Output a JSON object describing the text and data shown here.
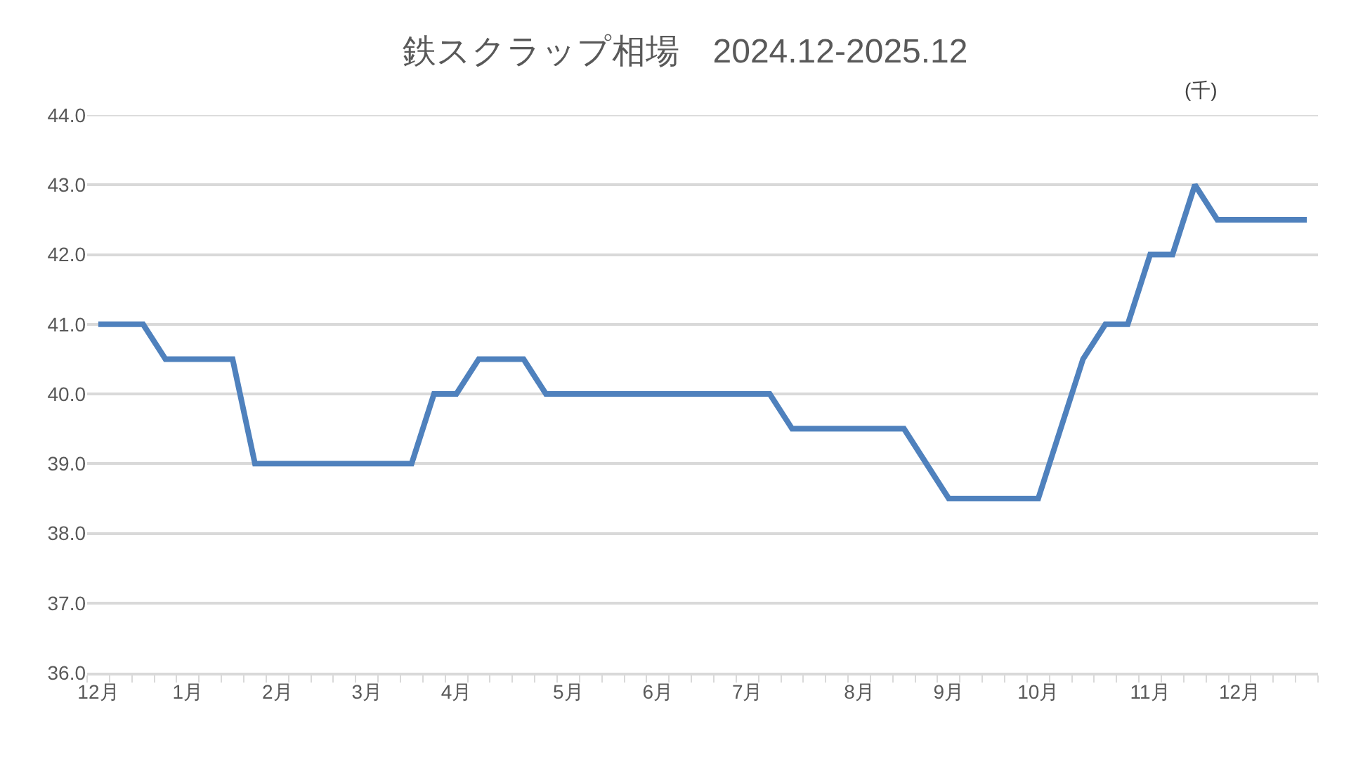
{
  "chart_data": {
    "type": "line",
    "title": "鉄スクラップ相場　2024.12-2025.12",
    "annotations": [
      "(千)"
    ],
    "categories": [
      "12月",
      null,
      null,
      null,
      "1月",
      null,
      null,
      null,
      "2月",
      null,
      null,
      null,
      "3月",
      null,
      null,
      null,
      "4月",
      null,
      null,
      null,
      null,
      "5月",
      null,
      null,
      null,
      "6月",
      null,
      null,
      null,
      "7月",
      null,
      null,
      null,
      null,
      "8月",
      null,
      null,
      null,
      "9月",
      null,
      null,
      null,
      "10月",
      null,
      null,
      null,
      null,
      "11月",
      null,
      null,
      null,
      "12月",
      null,
      null,
      null
    ],
    "series": [
      {
        "color": "#4f81bd",
        "values": [
          41.0,
          41.0,
          41.0,
          40.5,
          40.5,
          40.5,
          40.5,
          39.0,
          39.0,
          39.0,
          39.0,
          39.0,
          39.0,
          39.0,
          39.0,
          40.0,
          40.0,
          40.5,
          40.5,
          40.5,
          40.0,
          40.0,
          40.0,
          40.0,
          40.0,
          40.0,
          40.0,
          40.0,
          40.0,
          40.0,
          40.0,
          39.5,
          39.5,
          39.5,
          39.5,
          39.5,
          39.5,
          39.0,
          38.5,
          38.5,
          38.5,
          38.5,
          38.5,
          39.5,
          40.5,
          41.0,
          41.0,
          42.0,
          42.0,
          43.0,
          42.5,
          42.5,
          42.5,
          42.5,
          42.5
        ]
      }
    ],
    "ylim": [
      36,
      44
    ],
    "yticks": [
      {
        "value": 36,
        "label": "36.0"
      },
      {
        "value": 37,
        "label": "37.0"
      },
      {
        "value": 38,
        "label": "38.0"
      },
      {
        "value": 39,
        "label": "39.0"
      },
      {
        "value": 40,
        "label": "40.0"
      },
      {
        "value": 41,
        "label": "41.0"
      },
      {
        "value": 42,
        "label": "42.0"
      },
      {
        "value": 43,
        "label": "43.0"
      },
      {
        "value": 44,
        "label": "44.0"
      }
    ],
    "grid": "y",
    "marker": "none",
    "line_style": "solid"
  }
}
